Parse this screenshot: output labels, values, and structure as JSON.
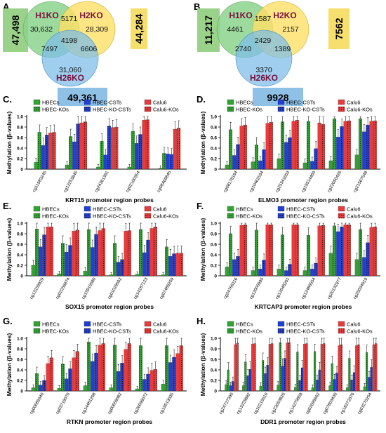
{
  "colors": {
    "green": "#2fa52f",
    "blue": "#1f3fd8",
    "red": "#e83b3b",
    "venn_green": "#8cd38c",
    "venn_yellow": "#ffe066",
    "venn_blue": "#7fbde8",
    "venn_label": "#7a0f3c",
    "box_green": "#9ad28a",
    "box_yellow": "#f6df6d",
    "box_blue": "#8fc0e6"
  },
  "legend_labels": [
    "HBECs",
    "HBEC-CSTs",
    "Calu6",
    "HBEC-KOs",
    "HBEC-KO-CSTs",
    "Calu6-KOs"
  ],
  "venn": [
    {
      "panel": "A.",
      "labels": [
        "H1KO",
        "H2KO",
        "H26KO"
      ],
      "only1": "30,632",
      "only2": "28,309",
      "only3": "31,060",
      "i12": "5171",
      "i13": "7497",
      "i23": "6606",
      "i123": "4198",
      "total1": "47,498",
      "total2": "44,284",
      "total3": "49,361"
    },
    {
      "panel": "B.",
      "labels": [
        "H1KO",
        "H2KO",
        "H26KO"
      ],
      "only1": "4461",
      "only2": "2157",
      "only3": "3370",
      "i12": "1587",
      "i13": "2740",
      "i23": "1389",
      "i123": "2429",
      "total1": "11,217",
      "total2": "7562",
      "total3": "9928"
    }
  ],
  "chart_data": [
    {
      "panel": "C.",
      "type": "bar",
      "xlabel": "KRT15 promoter region probes",
      "ylabel": "Methylation (β-values)",
      "ylim": [
        0,
        1.0
      ],
      "yticks": [
        "0",
        "0.2",
        "0.4",
        "0.6",
        "0.8",
        "1.0"
      ],
      "categories": [
        "cg11983245",
        "cg12253845",
        "cg24361391",
        "cg02100354",
        "cg08469845"
      ],
      "series": [
        {
          "name": "HBECs",
          "values": [
            0.13,
            0.08,
            0.04,
            0.04,
            0.02
          ]
        },
        {
          "name": "HBEC-KOs",
          "values": [
            0.7,
            0.62,
            0.53,
            0.72,
            0.3
          ]
        },
        {
          "name": "HBEC-CSTs",
          "values": [
            0.45,
            0.52,
            0.27,
            0.49,
            0.29
          ]
        },
        {
          "name": "HBEC-KO-CSTs",
          "values": [
            0.65,
            0.86,
            0.82,
            0.66,
            0.28
          ]
        },
        {
          "name": "Calu6",
          "values": [
            0.69,
            0.88,
            0.79,
            0.93,
            0.76
          ]
        },
        {
          "name": "Calu6-KOs",
          "values": [
            0.7,
            0.9,
            0.8,
            0.94,
            0.78
          ]
        }
      ]
    },
    {
      "panel": "D.",
      "type": "bar",
      "xlabel": "ELMO3 promoter region probes",
      "ylabel": "Methylation (β-values)",
      "ylim": [
        0,
        1.0
      ],
      "yticks": [
        "0",
        "0.2",
        "0.4",
        "0.6",
        "0.8",
        "1.0"
      ],
      "categories": [
        "cg08178184",
        "cg10462534",
        "cg25341653",
        "cg19514469",
        "cg22050426",
        "cg21567548"
      ],
      "series": [
        {
          "name": "HBECs",
          "values": [
            0.08,
            0.14,
            0.2,
            0.12,
            0.16,
            0.27
          ]
        },
        {
          "name": "HBEC-KOs",
          "values": [
            0.75,
            0.46,
            0.9,
            0.91,
            0.96,
            0.96
          ]
        },
        {
          "name": "HBEC-CSTs",
          "values": [
            0.26,
            0.16,
            0.51,
            0.15,
            0.61,
            0.71
          ]
        },
        {
          "name": "HBEC-KO-CSTs",
          "values": [
            0.47,
            0.37,
            0.6,
            0.39,
            0.81,
            0.84
          ]
        },
        {
          "name": "Calu6",
          "values": [
            0.82,
            0.87,
            0.91,
            0.88,
            0.91,
            0.91
          ]
        },
        {
          "name": "Calu6-KOs",
          "values": [
            0.84,
            0.89,
            0.93,
            0.85,
            0.92,
            0.92
          ]
        }
      ]
    },
    {
      "panel": "E.",
      "type": "bar",
      "xlabel": "SOX15 promoter region probes",
      "ylabel": "Methylation (β-values)",
      "ylim": [
        0,
        1.0
      ],
      "yticks": [
        "0",
        "0.2",
        "0.4",
        "0.6",
        "0.8",
        "1.0"
      ],
      "categories": [
        "cg13159929",
        "cg02256874",
        "cg15910580",
        "cg01029592",
        "cg14187123",
        "cg07488259"
      ],
      "series": [
        {
          "name": "HBECs",
          "values": [
            0.2,
            0.04,
            0.09,
            0.02,
            0.03,
            0.02
          ]
        },
        {
          "name": "HBEC-KOs",
          "values": [
            0.89,
            0.62,
            0.88,
            0.62,
            0.88,
            0.55
          ]
        },
        {
          "name": "HBEC-CSTs",
          "values": [
            0.55,
            0.45,
            0.54,
            0.26,
            0.44,
            0.37
          ]
        },
        {
          "name": "HBEC-KO-CSTs",
          "values": [
            0.78,
            0.58,
            0.79,
            0.31,
            0.68,
            0.42
          ]
        },
        {
          "name": "Calu6",
          "values": [
            0.93,
            0.85,
            0.86,
            0.85,
            0.9,
            0.43
          ]
        },
        {
          "name": "Calu6-KOs",
          "values": [
            0.93,
            0.87,
            0.9,
            0.86,
            0.93,
            0.43
          ]
        }
      ]
    },
    {
      "panel": "F.",
      "type": "bar",
      "xlabel": "KRTCAP3 promoter region probes",
      "ylabel": "Methylation (β-values)",
      "ylim": [
        0,
        1.0
      ],
      "yticks": [
        "0",
        "0.2",
        "0.4",
        "0.6",
        "0.8",
        "1.0"
      ],
      "categories": [
        "cg24768116",
        "cg12000995",
        "cg12648201",
        "cg12486554",
        "cg20132877",
        "cg25034919"
      ],
      "series": [
        {
          "name": "HBECs",
          "values": [
            0.17,
            0.1,
            0.13,
            0.1,
            0.43,
            0.31
          ]
        },
        {
          "name": "HBEC-KOs",
          "values": [
            0.8,
            0.87,
            0.78,
            0.77,
            0.95,
            0.88
          ]
        },
        {
          "name": "HBEC-CSTs",
          "values": [
            0.31,
            0.13,
            0.1,
            0.13,
            0.84,
            0.35
          ]
        },
        {
          "name": "HBEC-KO-CSTs",
          "values": [
            0.37,
            0.3,
            0.22,
            0.24,
            0.93,
            0.63
          ]
        },
        {
          "name": "Calu6",
          "values": [
            0.96,
            0.97,
            0.97,
            0.95,
            0.97,
            0.92
          ]
        },
        {
          "name": "Calu6-KOs",
          "values": [
            0.97,
            0.97,
            0.97,
            0.96,
            0.97,
            0.93
          ]
        }
      ]
    },
    {
      "panel": "G.",
      "type": "bar",
      "xlabel": "RTKN promoter region probes",
      "ylabel": "Methylation (β-values)",
      "ylim": [
        0,
        1.0
      ],
      "yticks": [
        "0",
        "0.2",
        "0.4",
        "0.6",
        "0.8",
        "1.0"
      ],
      "categories": [
        "cg00689340",
        "cg03719070",
        "cg14481208",
        "cg00658082",
        "cg26096072",
        "cg19513035"
      ],
      "series": [
        {
          "name": "HBECs",
          "values": [
            0.06,
            0.05,
            0.1,
            0.06,
            0.04,
            0.13
          ]
        },
        {
          "name": "HBEC-KOs",
          "values": [
            0.33,
            0.51,
            0.93,
            0.87,
            0.86,
            0.86
          ]
        },
        {
          "name": "HBEC-CSTs",
          "values": [
            0.11,
            0.23,
            0.56,
            0.37,
            0.22,
            0.54
          ]
        },
        {
          "name": "HBEC-KO-CSTs",
          "values": [
            0.2,
            0.42,
            0.72,
            0.53,
            0.32,
            0.64
          ]
        },
        {
          "name": "Calu6",
          "values": [
            0.52,
            0.63,
            0.87,
            0.79,
            0.39,
            0.71
          ]
        },
        {
          "name": "Calu6-KOs",
          "values": [
            0.63,
            0.75,
            0.9,
            0.9,
            0.41,
            0.86
          ]
        }
      ]
    },
    {
      "panel": "H.",
      "type": "bar",
      "xlabel": "DDR1 promoter region probes",
      "ylabel": "Methylation (β-values)",
      "ylim": [
        0,
        1.0
      ],
      "yticks": [
        "0",
        "0.2",
        "0.4",
        "0.6",
        "0.8",
        "1.0"
      ],
      "categories": [
        "cg24727390",
        "cg13228882",
        "cg10215510",
        "cg23053820",
        "cg14279859",
        "cg02695662",
        "cg07803430",
        "cg18272076",
        "cg03270204"
      ],
      "series": [
        {
          "name": "HBECs",
          "values": [
            0.12,
            0.1,
            0.09,
            0.11,
            0.07,
            0.06,
            0.1,
            0.06,
            0.08
          ]
        },
        {
          "name": "HBEC-KOs",
          "values": [
            0.4,
            0.55,
            0.58,
            0.92,
            0.74,
            0.75,
            0.52,
            0.62,
            0.73
          ]
        },
        {
          "name": "HBEC-CSTs",
          "values": [
            0.1,
            0.29,
            0.33,
            0.47,
            0.2,
            0.21,
            0.22,
            0.21,
            0.26
          ]
        },
        {
          "name": "HBEC-KO-CSTs",
          "values": [
            0.18,
            0.41,
            0.49,
            0.62,
            0.44,
            0.4,
            0.34,
            0.35,
            0.45
          ]
        },
        {
          "name": "Calu6",
          "values": [
            0.88,
            0.89,
            0.89,
            0.91,
            0.89,
            0.89,
            0.86,
            0.86,
            0.88
          ]
        },
        {
          "name": "Calu6-KOs",
          "values": [
            0.91,
            0.9,
            0.9,
            0.92,
            0.9,
            0.9,
            0.88,
            0.88,
            0.9
          ]
        }
      ]
    }
  ]
}
